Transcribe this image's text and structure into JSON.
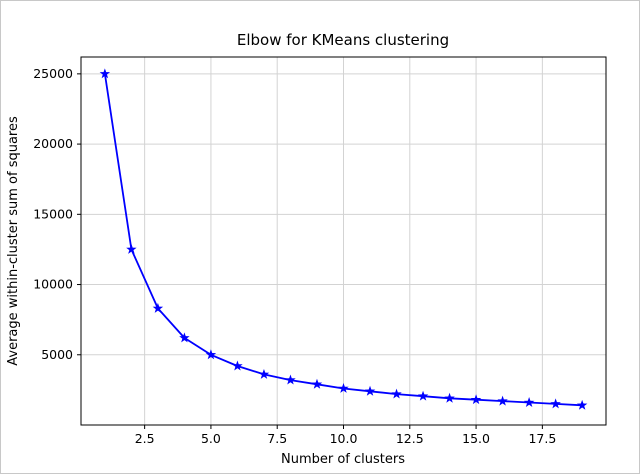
{
  "figure": {
    "background": "#ffffff",
    "border_color": "#c8c8c8"
  },
  "chart_data": {
    "type": "line",
    "title": "Elbow for KMeans clustering",
    "xlabel": "Number of clusters",
    "ylabel": "Average within-cluster sum of squares",
    "x": [
      1,
      2,
      3,
      4,
      5,
      6,
      7,
      8,
      9,
      10,
      11,
      12,
      13,
      14,
      15,
      16,
      17,
      18,
      19
    ],
    "y": [
      25000,
      12500,
      8300,
      6200,
      5000,
      4200,
      3600,
      3200,
      2900,
      2600,
      2400,
      2200,
      2050,
      1900,
      1800,
      1700,
      1600,
      1500,
      1400
    ],
    "xlim": [
      0.1,
      19.9
    ],
    "ylim": [
      0,
      26200
    ],
    "xticks": [
      2.5,
      5,
      7.5,
      10,
      12.5,
      15,
      17.5
    ],
    "xtick_labels": [
      "2.5",
      "5.0",
      "7.5",
      "10.0",
      "12.5",
      "15.0",
      "17.5"
    ],
    "yticks": [
      5000,
      10000,
      15000,
      20000,
      25000
    ],
    "ytick_labels": [
      "5000",
      "10000",
      "15000",
      "20000",
      "25000"
    ],
    "grid": true,
    "legend": "none",
    "line_color": "#0000ff",
    "marker": "star",
    "marker_color": "#0000ff",
    "grid_color": "#d3d3d3",
    "spine_color": "#000000"
  }
}
